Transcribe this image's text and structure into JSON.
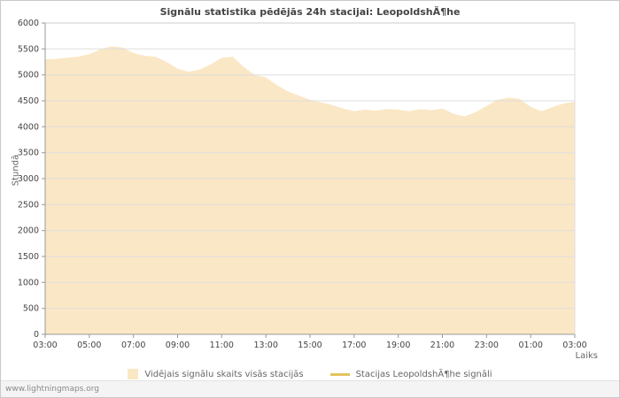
{
  "watermark": "www.lightningmaps.org",
  "chart_data": {
    "type": "area",
    "title": "Signālu statistika pēdējās 24h stacijai: LeopoldshÃ¶he",
    "xlabel": "Laiks",
    "ylabel": "Stundā",
    "ylim": [
      0,
      6000
    ],
    "ytick_step": 500,
    "grid": "horizontal",
    "legend_position": "bottom",
    "x_ticks": [
      "03:00",
      "05:00",
      "07:00",
      "09:00",
      "11:00",
      "13:00",
      "15:00",
      "17:00",
      "19:00",
      "21:00",
      "23:00",
      "01:00",
      "03:00"
    ],
    "points_interval_hours": 0.5,
    "series": [
      {
        "name": "Vidējais signālu skaits visās stacijās",
        "type": "area",
        "color": "#fae7c5",
        "values": [
          5300,
          5310,
          5330,
          5350,
          5400,
          5490,
          5550,
          5530,
          5420,
          5370,
          5350,
          5250,
          5120,
          5060,
          5100,
          5200,
          5330,
          5350,
          5150,
          5000,
          4950,
          4800,
          4680,
          4600,
          4520,
          4470,
          4420,
          4350,
          4300,
          4330,
          4310,
          4340,
          4330,
          4300,
          4340,
          4320,
          4350,
          4250,
          4200,
          4280,
          4400,
          4520,
          4560,
          4540,
          4380,
          4300,
          4380,
          4450,
          4480
        ]
      },
      {
        "name": "Stacijas LeopoldshÃ¶he signāli",
        "type": "line",
        "color": "#e3c45e",
        "values": []
      }
    ]
  }
}
